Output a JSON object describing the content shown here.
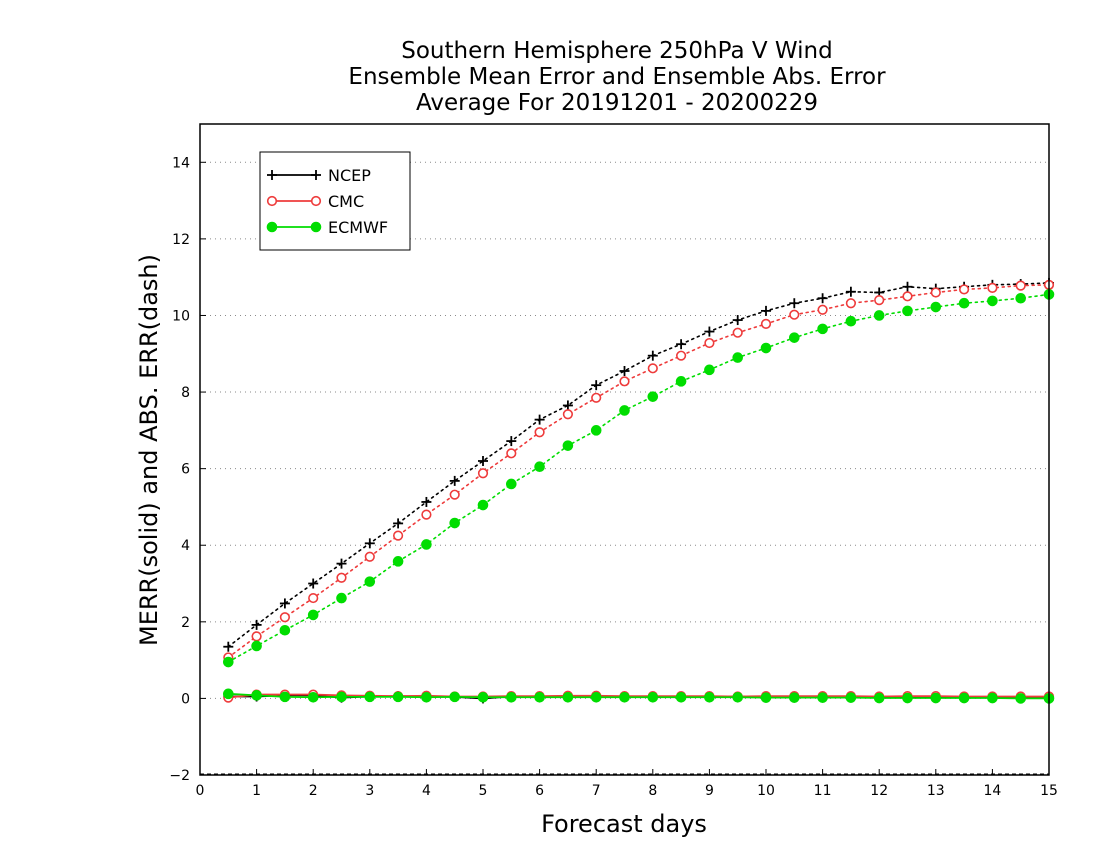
{
  "chart_data": {
    "type": "line",
    "title": [
      "Southern Hemisphere 250hPa V Wind",
      "Ensemble Mean Error and Ensemble Abs. Error",
      "Average For 20191201 - 20200229"
    ],
    "xlabel": "Forecast days",
    "ylabel": "MERR(solid) and ABS. ERR(dash)",
    "xlim": [
      0,
      15
    ],
    "ylim": [
      -2,
      15
    ],
    "xticks": [
      "0",
      "1",
      "2",
      "3",
      "4",
      "5",
      "6",
      "7",
      "8",
      "9",
      "10",
      "11",
      "12",
      "13",
      "14",
      "15"
    ],
    "yticks": [
      "−2",
      "0",
      "2",
      "4",
      "6",
      "8",
      "10",
      "12",
      "14"
    ],
    "grid": "horizontal dotted",
    "legend_position": "top-left",
    "x": [
      0.5,
      1,
      1.5,
      2,
      2.5,
      3,
      3.5,
      4,
      4.5,
      5,
      5.5,
      6,
      6.5,
      7,
      7.5,
      8,
      8.5,
      9,
      9.5,
      10,
      10.5,
      11,
      11.5,
      12,
      12.5,
      13,
      13.5,
      14,
      14.5,
      15
    ],
    "series": [
      {
        "name": "NCEP",
        "color": "#000000",
        "marker": "plus",
        "abs_error": [
          1.35,
          1.92,
          2.48,
          3.0,
          3.52,
          4.05,
          4.57,
          5.13,
          5.68,
          6.2,
          6.72,
          7.28,
          7.65,
          8.18,
          8.55,
          8.95,
          9.25,
          9.58,
          9.88,
          10.12,
          10.32,
          10.45,
          10.62,
          10.6,
          10.75,
          10.7,
          10.75,
          10.8,
          10.82,
          10.85
        ],
        "mean_error": [
          0.05,
          0.05,
          0.08,
          0.08,
          0.02,
          0.05,
          0.06,
          0.05,
          0.04,
          0.0,
          0.05,
          0.05,
          0.04,
          0.05,
          0.05,
          0.05,
          0.04,
          0.05,
          0.05,
          0.05,
          0.04,
          0.04,
          0.03,
          0.03,
          0.03,
          0.02,
          0.02,
          0.02,
          0.02,
          0.01
        ]
      },
      {
        "name": "CMC",
        "color": "#ee3b3b",
        "marker": "open-circle",
        "abs_error": [
          1.07,
          1.62,
          2.12,
          2.62,
          3.15,
          3.7,
          4.25,
          4.8,
          5.32,
          5.88,
          6.4,
          6.95,
          7.42,
          7.85,
          8.28,
          8.62,
          8.95,
          9.28,
          9.55,
          9.78,
          10.02,
          10.15,
          10.32,
          10.4,
          10.5,
          10.6,
          10.68,
          10.72,
          10.78,
          10.8
        ],
        "mean_error": [
          0.02,
          0.1,
          0.1,
          0.1,
          0.08,
          0.07,
          0.06,
          0.07,
          0.05,
          0.05,
          0.06,
          0.06,
          0.07,
          0.07,
          0.06,
          0.06,
          0.06,
          0.06,
          0.05,
          0.06,
          0.06,
          0.06,
          0.06,
          0.05,
          0.06,
          0.06,
          0.05,
          0.05,
          0.05,
          0.05
        ]
      },
      {
        "name": "ECMWF",
        "color": "#00dd00",
        "marker": "filled-circle",
        "abs_error": [
          0.95,
          1.37,
          1.78,
          2.18,
          2.62,
          3.05,
          3.58,
          4.02,
          4.58,
          5.05,
          5.6,
          6.05,
          6.6,
          7.0,
          7.52,
          7.88,
          8.28,
          8.58,
          8.9,
          9.15,
          9.42,
          9.65,
          9.85,
          10.0,
          10.12,
          10.22,
          10.32,
          10.38,
          10.45,
          10.55
        ],
        "mean_error": [
          0.12,
          0.08,
          0.04,
          0.03,
          0.04,
          0.04,
          0.04,
          0.03,
          0.04,
          0.03,
          0.03,
          0.03,
          0.03,
          0.03,
          0.03,
          0.03,
          0.03,
          0.03,
          0.03,
          0.02,
          0.02,
          0.02,
          0.02,
          0.01,
          0.01,
          0.01,
          0.01,
          0.01,
          0.0,
          0.0
        ]
      }
    ]
  }
}
